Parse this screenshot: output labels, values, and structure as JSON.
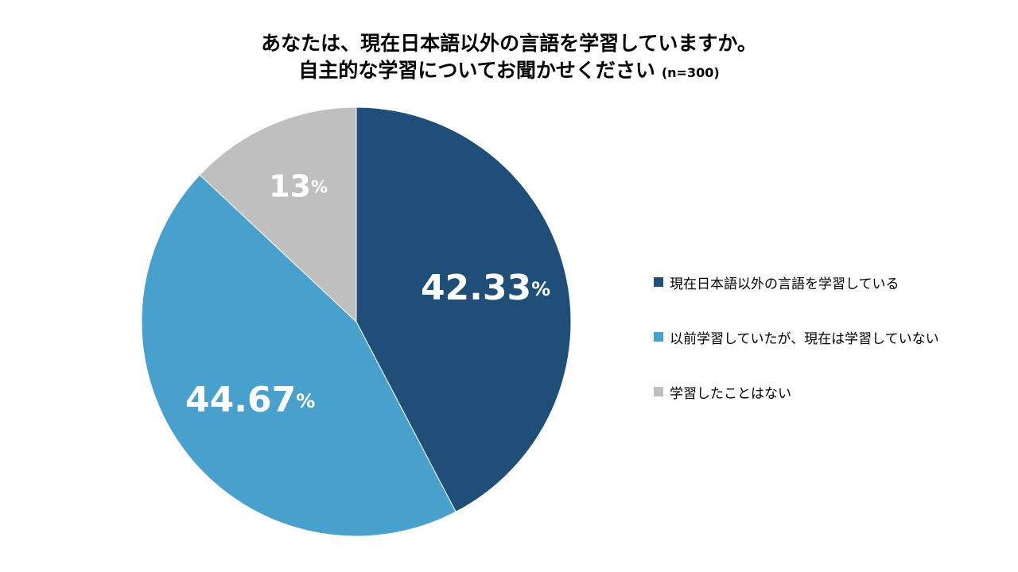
{
  "title": {
    "line1": "あなたは、現在日本語以外の言語を学習していますか。",
    "line2": "自主的な学習についてお聞かせください",
    "sample": "(n=300)"
  },
  "colors": {
    "series1": "#1f4e79",
    "series2": "#48a0cc",
    "series3": "#bfbfbf"
  },
  "chart_data": {
    "type": "pie",
    "title": "あなたは、現在日本語以外の言語を学習していますか。自主的な学習についてお聞かせください (n=300)",
    "categories": [
      "現在日本語以外の言語を学習している",
      "以前学習していたが、現在は学習していない",
      "学習したことはない"
    ],
    "values": [
      42.33,
      44.67,
      13
    ],
    "labels": [
      {
        "num": "42.33",
        "unit": "%"
      },
      {
        "num": "44.67",
        "unit": "%"
      },
      {
        "num": "13",
        "unit": "%"
      }
    ],
    "legend_position": "right"
  }
}
